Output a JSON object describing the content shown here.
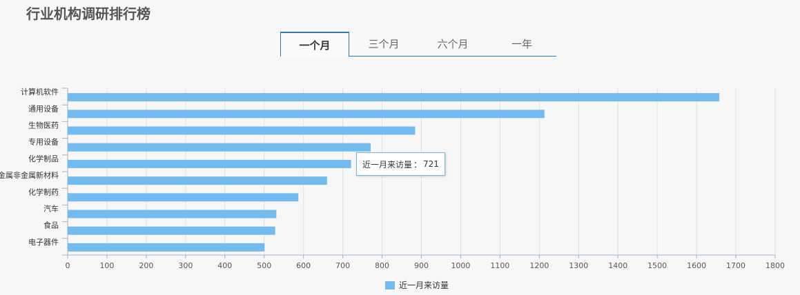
{
  "page": {
    "title": "行业机构调研排行榜"
  },
  "tabs": [
    {
      "label": "一个月",
      "active": true
    },
    {
      "label": "三个月",
      "active": false
    },
    {
      "label": "六个月",
      "active": false
    },
    {
      "label": "一年",
      "active": false
    }
  ],
  "chart_data": {
    "type": "bar",
    "orientation": "horizontal",
    "categories": [
      "计算机软件",
      "通用设备",
      "生物医药",
      "专用设备",
      "化学制品",
      "金属非金属新材料",
      "化学制药",
      "汽车",
      "食品",
      "电子器件"
    ],
    "series": [
      {
        "name": "近一月来访量",
        "values": [
          1658,
          1213,
          884,
          771,
          721,
          660,
          587,
          531,
          528,
          501
        ],
        "color": "#73bbef"
      }
    ],
    "x_ticks": [
      0,
      100,
      200,
      300,
      400,
      500,
      600,
      700,
      800,
      900,
      1000,
      1100,
      1200,
      1300,
      1400,
      1500,
      1600,
      1700,
      1800
    ],
    "xlim": [
      0,
      1800
    ],
    "grid": true,
    "legend_position": "bottom-center"
  },
  "tooltip": {
    "label": "近一月来访量",
    "separator": "：",
    "value": "721"
  },
  "colors": {
    "bar": "#73bbef",
    "accent": "#2a7ab8",
    "grid": "#e0e0e0",
    "axis": "#9fb3c8"
  }
}
